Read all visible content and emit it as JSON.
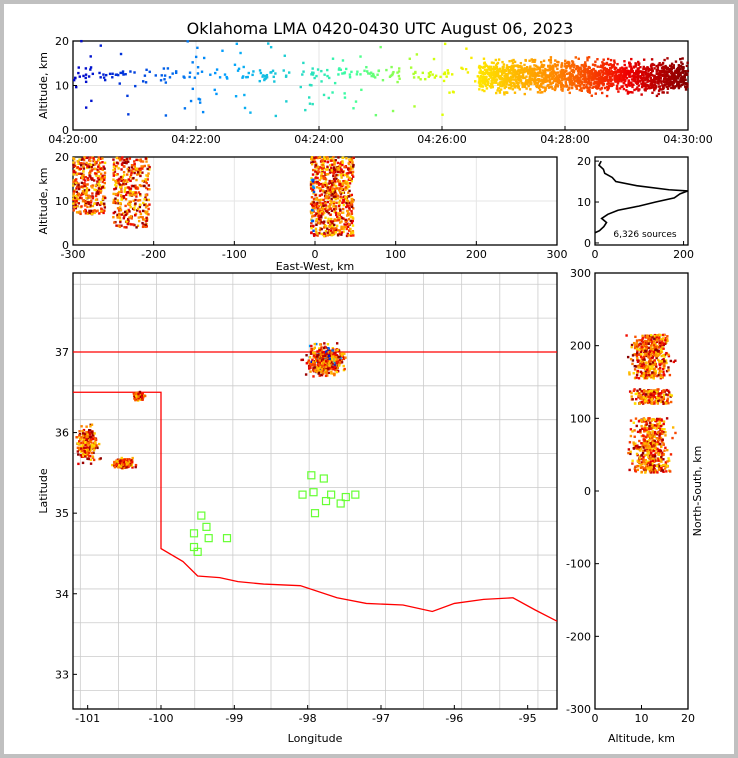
{
  "title": "Oklahoma LMA 0420-0430 UTC August 06, 2023",
  "chart_data": [
    {
      "id": "time-height",
      "type": "scatter",
      "xlabel": "",
      "ylabel": "Altitude, km",
      "xlim": [
        "04:20:00",
        "04:30:00"
      ],
      "ylim": [
        0,
        20
      ],
      "xticks": [
        "04:20:00",
        "04:22:00",
        "04:24:00",
        "04:26:00",
        "04:28:00",
        "04:30:00"
      ],
      "yticks": [
        "0",
        "10",
        "20"
      ],
      "color_by": "time",
      "description_clusters": [
        {
          "t_start_min": 0,
          "t_end_min": 6.6,
          "alt_range_km": [
            3,
            20
          ],
          "density": "sparse"
        },
        {
          "t_start_min": 6.6,
          "t_end_min": 10,
          "alt_range_km": [
            2.5,
            20
          ],
          "density": "dense"
        }
      ]
    },
    {
      "id": "ew-height",
      "type": "scatter",
      "xlabel": "East-West, km",
      "ylabel": "Altitude, km",
      "xlim": [
        -300,
        300
      ],
      "ylim": [
        0,
        20
      ],
      "xticks": [
        "-300",
        "-200",
        "-100",
        "0",
        "100",
        "200",
        "300"
      ],
      "yticks": [
        "0",
        "10",
        "20"
      ],
      "clusters": [
        {
          "x_range": [
            -300,
            -260
          ],
          "alt_range": [
            7,
            20
          ]
        },
        {
          "x_range": [
            -250,
            -205
          ],
          "alt_range": [
            4,
            20
          ]
        },
        {
          "x_range": [
            -5,
            48
          ],
          "alt_range": [
            2,
            20
          ]
        }
      ]
    },
    {
      "id": "altitude-histogram",
      "type": "line",
      "xlim": [
        0,
        210
      ],
      "ylim": [
        0,
        21
      ],
      "xticks": [
        "0",
        "200"
      ],
      "yticks": [
        "0",
        "10",
        "20"
      ],
      "annotation": "6,326 sources",
      "profile": [
        [
          2.5,
          0
        ],
        [
          3,
          10
        ],
        [
          4,
          20
        ],
        [
          5,
          22
        ],
        [
          6,
          18
        ],
        [
          7,
          25
        ],
        [
          8,
          55
        ],
        [
          9,
          95
        ],
        [
          10,
          140
        ],
        [
          11,
          175
        ],
        [
          12,
          195
        ],
        [
          12.7,
          205
        ],
        [
          13,
          170
        ],
        [
          14,
          90
        ],
        [
          15,
          50
        ],
        [
          16,
          35
        ],
        [
          17,
          25
        ],
        [
          18,
          15
        ],
        [
          19,
          12
        ],
        [
          20,
          10
        ]
      ]
    },
    {
      "id": "plan-view",
      "type": "scatter",
      "xlabel": "Longitude",
      "ylabel": "Latitude",
      "xlim": [
        -101.2,
        -94.6
      ],
      "ylim": [
        32.57,
        37.98
      ],
      "xticks": [
        "-101",
        "-100",
        "-99",
        "-98",
        "-97",
        "-96",
        "-95"
      ],
      "yticks": [
        "33",
        "34",
        "35",
        "36",
        "37"
      ],
      "clusters": [
        {
          "lon": -97.75,
          "lat": 36.9,
          "spread": [
            0.35,
            0.25
          ]
        },
        {
          "lon": -100.3,
          "lat": 36.45,
          "spread": [
            0.1,
            0.06
          ]
        },
        {
          "lon": -101.0,
          "lat": 35.85,
          "spread": [
            0.2,
            0.3
          ]
        },
        {
          "lon": -100.5,
          "lat": 35.62,
          "spread": [
            0.2,
            0.08
          ]
        }
      ],
      "stations": [
        [
          -97.95,
          35.47
        ],
        [
          -97.78,
          35.43
        ],
        [
          -98.07,
          35.23
        ],
        [
          -97.92,
          35.26
        ],
        [
          -97.68,
          35.23
        ],
        [
          -97.75,
          35.15
        ],
        [
          -97.55,
          35.12
        ],
        [
          -97.48,
          35.2
        ],
        [
          -97.35,
          35.23
        ],
        [
          -97.9,
          35.0
        ],
        [
          -99.45,
          34.97
        ],
        [
          -99.38,
          34.83
        ],
        [
          -99.55,
          34.75
        ],
        [
          -99.35,
          34.69
        ],
        [
          -99.1,
          34.69
        ],
        [
          -99.55,
          34.58
        ],
        [
          -99.5,
          34.52
        ]
      ]
    },
    {
      "id": "height-ns",
      "type": "scatter",
      "xlabel": "Altitude, km",
      "ylabel": "North-South, km",
      "xlim": [
        0,
        20
      ],
      "ylim": [
        -300,
        300
      ],
      "xticks": [
        "0",
        "10",
        "20"
      ],
      "yticks": [
        "-300",
        "-200",
        "-100",
        "0",
        "100",
        "200",
        "300"
      ],
      "clusters": [
        {
          "y_range": [
            155,
            215
          ],
          "alt_range": [
            1,
            20
          ]
        },
        {
          "y_range": [
            120,
            140
          ],
          "alt_range": [
            5,
            20
          ]
        },
        {
          "y_range": [
            25,
            100
          ],
          "alt_range": [
            2,
            20
          ]
        }
      ]
    }
  ],
  "colors": {
    "border": "#ff0000",
    "station": "#66ff33",
    "county": "#cccccc"
  }
}
